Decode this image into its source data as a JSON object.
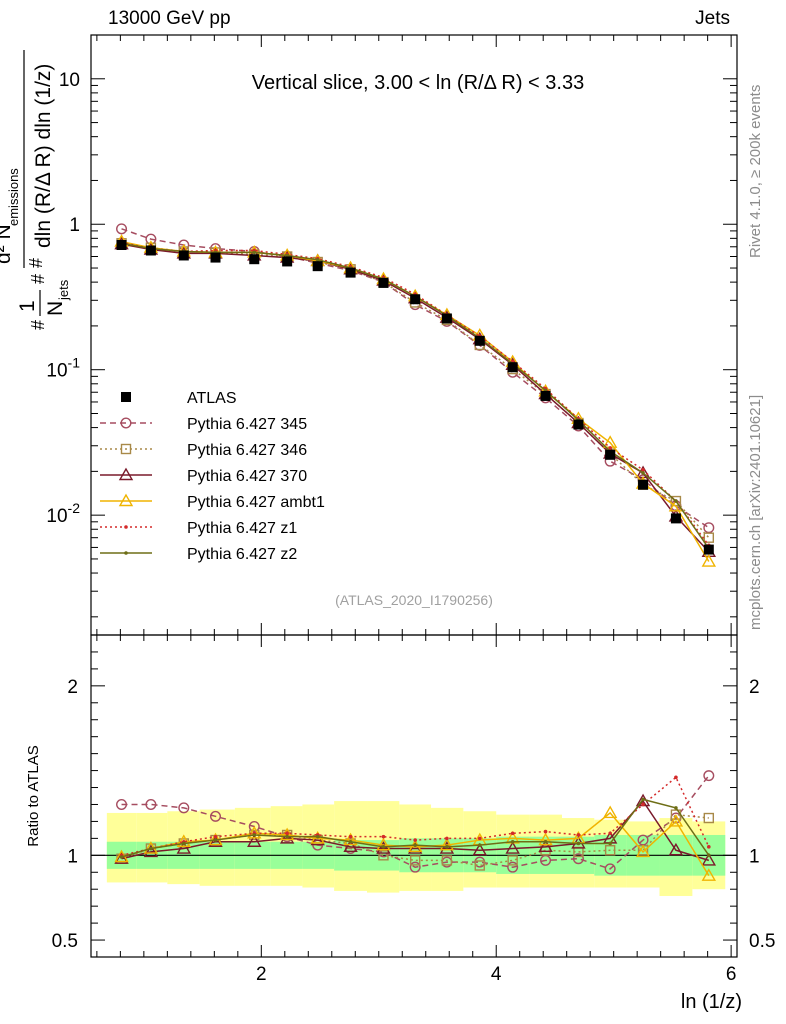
{
  "header": {
    "left": "13000 GeV pp",
    "right": "Jets"
  },
  "side": {
    "rivet": "Rivet 4.1.0, ≥ 200k events",
    "source": "mcplots.cern.ch [arXiv:2401.10621]"
  },
  "chart_data": {
    "type": "line",
    "title": "Vertical slice, 3.00 < ln (R/Δ R) < 3.33",
    "watermark": "(ATLAS_2020_I1790256)",
    "xlabel": "ln (1/z)",
    "ylabel": "Ratio to ATLAS",
    "xlim": [
      0.55,
      6.05
    ],
    "ylim_main": [
      0.0015,
      20
    ],
    "ylim_ratio": [
      0.4,
      2.3
    ],
    "x_ticks": [
      "2",
      "4",
      "6"
    ],
    "y_ticks_main": [
      "10^-2",
      "10^-1",
      "1",
      "10"
    ],
    "y_ticks_ratio": [
      "0.5",
      "1",
      "2"
    ],
    "x": [
      0.81,
      1.06,
      1.34,
      1.61,
      1.94,
      2.22,
      2.48,
      2.76,
      3.04,
      3.31,
      3.58,
      3.86,
      4.14,
      4.42,
      4.7,
      4.97,
      5.25,
      5.53,
      5.81
    ],
    "atlas": {
      "name": "ATLAS",
      "values": [
        0.72,
        0.66,
        0.61,
        0.59,
        0.575,
        0.555,
        0.515,
        0.465,
        0.395,
        0.305,
        0.225,
        0.158,
        0.104,
        0.066,
        0.042,
        0.026,
        0.0162,
        0.0095,
        0.0058
      ]
    },
    "series": [
      {
        "name": "Pythia 6.427 345",
        "color": "#a64d60",
        "style": "dashed",
        "marker": "circle",
        "values": [
          0.93,
          0.79,
          0.72,
          0.68,
          0.65,
          0.6,
          0.54,
          0.48,
          0.4,
          0.28,
          0.215,
          0.147,
          0.096,
          0.064,
          0.041,
          0.0235,
          0.0175,
          0.0116,
          0.0082
        ],
        "ratio": [
          1.3,
          1.3,
          1.28,
          1.23,
          1.17,
          1.11,
          1.06,
          1.04,
          1.02,
          0.93,
          0.96,
          0.96,
          0.93,
          0.97,
          0.98,
          0.92,
          1.09,
          1.22,
          1.47
        ]
      },
      {
        "name": "Pythia 6.427 346",
        "color": "#a88948",
        "style": "dotted",
        "marker": "square",
        "values": [
          0.74,
          0.69,
          0.65,
          0.64,
          0.62,
          0.6,
          0.55,
          0.49,
          0.4,
          0.29,
          0.22,
          0.148,
          0.101,
          0.068,
          0.043,
          0.0265,
          0.0162,
          0.0125,
          0.007
        ],
        "ratio": [
          0.98,
          1.04,
          1.07,
          1.09,
          1.12,
          1.12,
          1.09,
          1.07,
          1.0,
          0.97,
          0.97,
          0.94,
          0.97,
          1.03,
          1.02,
          1.03,
          1.03,
          1.24,
          1.22
        ]
      },
      {
        "name": "Pythia 6.427 370",
        "color": "#7a1a2b",
        "style": "solid",
        "marker": "triangle",
        "values": [
          0.73,
          0.67,
          0.63,
          0.63,
          0.61,
          0.59,
          0.56,
          0.49,
          0.41,
          0.31,
          0.228,
          0.162,
          0.108,
          0.068,
          0.043,
          0.0265,
          0.0195,
          0.0098,
          0.0056
        ],
        "ratio": [
          0.98,
          1.02,
          1.04,
          1.08,
          1.08,
          1.1,
          1.09,
          1.05,
          1.04,
          1.04,
          1.04,
          1.03,
          1.04,
          1.05,
          1.07,
          1.1,
          1.32,
          1.03,
          0.97
        ]
      },
      {
        "name": "Pythia 6.427 ambt1",
        "color": "#f0b400",
        "style": "solid",
        "marker": "triangle",
        "values": [
          0.76,
          0.69,
          0.65,
          0.64,
          0.64,
          0.61,
          0.56,
          0.5,
          0.42,
          0.32,
          0.238,
          0.172,
          0.113,
          0.071,
          0.046,
          0.0315,
          0.0165,
          0.0115,
          0.0048
        ],
        "ratio": [
          0.99,
          1.04,
          1.08,
          1.09,
          1.13,
          1.12,
          1.1,
          1.09,
          1.06,
          1.05,
          1.06,
          1.09,
          1.1,
          1.09,
          1.1,
          1.25,
          1.02,
          1.2,
          0.88
        ]
      },
      {
        "name": "Pythia 6.427 z1",
        "color": "#d42a2a",
        "style": "dotted",
        "marker": "dot",
        "values": [
          0.75,
          0.68,
          0.65,
          0.66,
          0.66,
          0.62,
          0.58,
          0.51,
          0.43,
          0.33,
          0.238,
          0.17,
          0.114,
          0.074,
          0.046,
          0.029,
          0.0205,
          0.0125,
          0.0062
        ],
        "ratio": [
          1.0,
          1.04,
          1.08,
          1.11,
          1.13,
          1.13,
          1.12,
          1.11,
          1.11,
          1.09,
          1.1,
          1.1,
          1.13,
          1.14,
          1.12,
          1.13,
          1.3,
          1.46,
          1.05
        ]
      },
      {
        "name": "Pythia 6.427 z2",
        "color": "#6e6e16",
        "style": "solid",
        "marker": "dot",
        "values": [
          0.74,
          0.68,
          0.65,
          0.64,
          0.64,
          0.61,
          0.57,
          0.5,
          0.42,
          0.32,
          0.235,
          0.165,
          0.11,
          0.072,
          0.045,
          0.0275,
          0.0195,
          0.0125,
          0.0059
        ],
        "ratio": [
          0.99,
          1.04,
          1.07,
          1.09,
          1.12,
          1.11,
          1.11,
          1.08,
          1.05,
          1.06,
          1.05,
          1.06,
          1.08,
          1.08,
          1.07,
          1.07,
          1.33,
          1.28,
          1.0
        ]
      }
    ],
    "bands": {
      "green_half": [
        0.08,
        0.08,
        0.08,
        0.08,
        0.08,
        0.08,
        0.08,
        0.09,
        0.09,
        0.1,
        0.1,
        0.1,
        0.11,
        0.11,
        0.11,
        0.12,
        0.12,
        0.12,
        0.12
      ],
      "yellow_low": [
        0.84,
        0.84,
        0.83,
        0.82,
        0.82,
        0.82,
        0.81,
        0.79,
        0.78,
        0.79,
        0.79,
        0.81,
        0.81,
        0.81,
        0.81,
        0.81,
        0.81,
        0.76,
        0.8
      ],
      "yellow_high": [
        1.25,
        1.25,
        1.26,
        1.27,
        1.28,
        1.29,
        1.3,
        1.32,
        1.32,
        1.3,
        1.28,
        1.26,
        1.24,
        1.24,
        1.22,
        1.21,
        1.2,
        1.22,
        1.2
      ]
    },
    "legend_position": "center-left"
  }
}
